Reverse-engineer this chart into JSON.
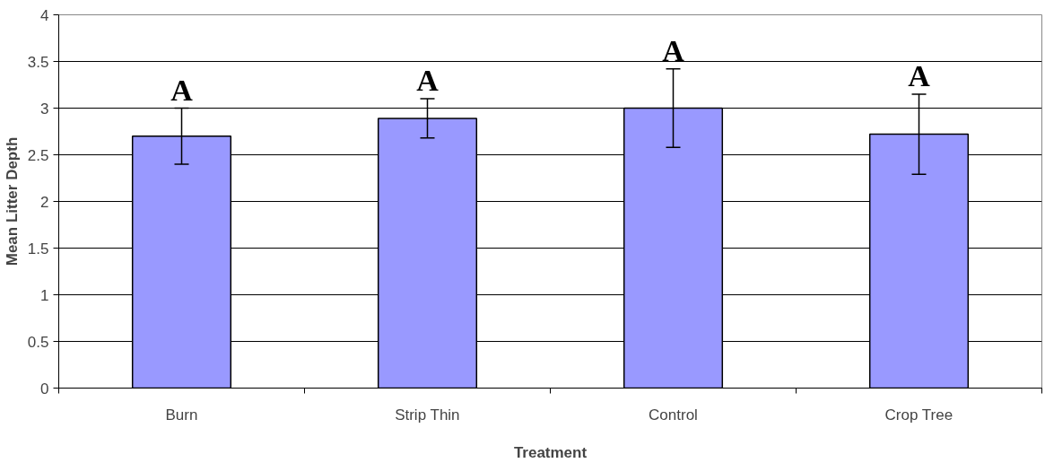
{
  "chart_data": {
    "type": "bar",
    "xlabel": "Treatment",
    "ylabel": "Mean Litter Depth",
    "categories": [
      "Burn",
      "Strip Thin",
      "Control",
      "Crop Tree"
    ],
    "values": [
      2.7,
      2.89,
      3.0,
      2.72
    ],
    "errors": [
      0.3,
      0.21,
      0.42,
      0.43
    ],
    "color": "#9999ff",
    "ylim": [
      0,
      4
    ],
    "yticks": [
      0,
      0.5,
      1,
      1.5,
      2,
      2.5,
      3,
      3.5,
      4
    ],
    "grid": "y",
    "legend": false,
    "annotations": [
      "A",
      "A",
      "A",
      "A"
    ]
  }
}
